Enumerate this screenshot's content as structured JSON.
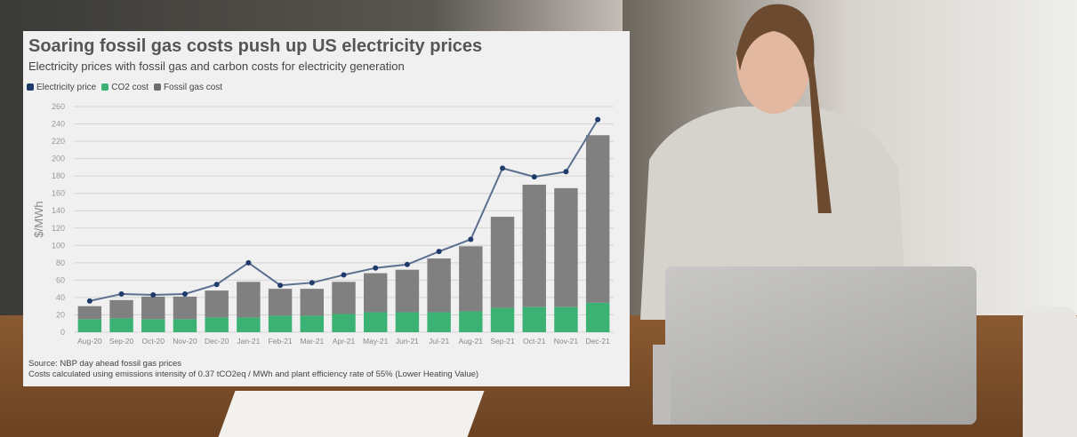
{
  "chart_data": {
    "type": "bar",
    "title": "Soaring fossil gas costs push up US electricity prices",
    "subtitle": "Electricity prices with fossil gas and carbon costs for electricity generation",
    "ylabel": "$/MWh",
    "xlabel": "",
    "ylim": [
      0,
      260
    ],
    "yticks": [
      0,
      20,
      40,
      60,
      80,
      100,
      120,
      140,
      160,
      180,
      200,
      220,
      240,
      260
    ],
    "grid": true,
    "legend_position": "top-left",
    "categories": [
      "Aug-20",
      "Sep-20",
      "Oct-20",
      "Nov-20",
      "Dec-20",
      "Jan-21",
      "Feb-21",
      "Mar-21",
      "Apr-21",
      "May-21",
      "Jun-21",
      "Jul-21",
      "Aug-21",
      "Sep-21",
      "Oct-21",
      "Nov-21",
      "Dec-21"
    ],
    "series": [
      {
        "name": "Electricity price",
        "type": "line",
        "color": "#1f3b6b",
        "values": [
          36,
          44,
          43,
          44,
          55,
          80,
          54,
          57,
          66,
          74,
          78,
          93,
          107,
          189,
          179,
          185,
          245
        ]
      },
      {
        "name": "CO2 cost",
        "type": "bar",
        "stacked": true,
        "color": "#3bb273",
        "values": [
          15,
          16,
          15,
          15,
          17,
          17,
          19,
          19,
          21,
          23,
          23,
          23,
          24,
          28,
          29,
          29,
          34
        ]
      },
      {
        "name": "Fossil gas cost",
        "type": "bar",
        "stacked": true,
        "color": "#808080",
        "values": [
          15,
          21,
          26,
          26,
          31,
          41,
          31,
          31,
          37,
          45,
          49,
          62,
          75,
          105,
          141,
          137,
          193
        ]
      }
    ],
    "source": "Source: NBP day ahead fossil gas prices",
    "note": "Costs calculated using emissions intensity of 0.37 tCO2eq / MWh and plant efficiency rate of 55% (Lower Heating Value)"
  }
}
